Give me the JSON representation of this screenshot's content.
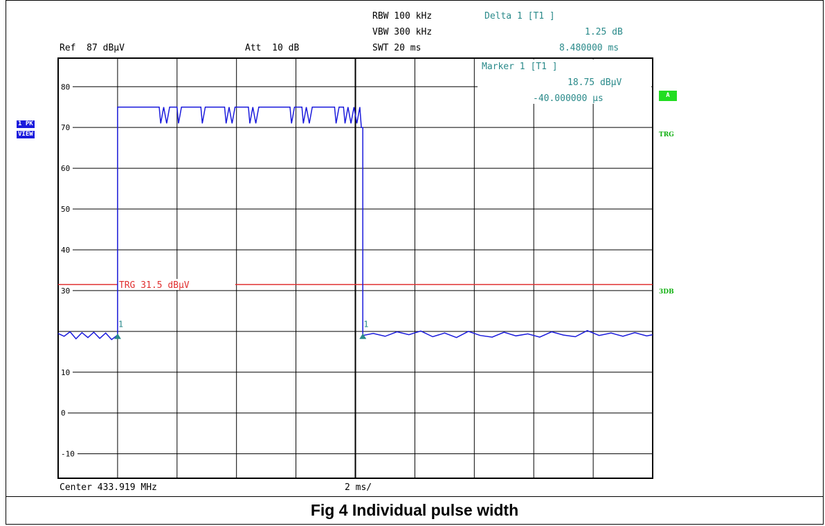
{
  "header": {
    "ref": "Ref  87 dBµV",
    "att": "Att  10 dB",
    "rbw": "RBW 100 kHz",
    "vbw": "VBW 300 kHz",
    "swt": "SWT 20 ms",
    "delta_label": "Delta 1 [T1 ]",
    "delta_value": "1.25 dB",
    "delta_time": "8.480000 ms"
  },
  "marker_box": {
    "title": "Marker 1 [T1 ]",
    "level": "18.75 dBµV",
    "time": "-40.000000 µs"
  },
  "badges": {
    "trace_mode": "1 PK",
    "trace_view": "VIEW",
    "a_label": "A",
    "trg_label": "TRG",
    "db3_label": "3DB"
  },
  "footer": {
    "center": "Center 433.919 MHz",
    "span": "2 ms/"
  },
  "caption": "Fig 4 Individual pulse width",
  "chart_data": {
    "type": "line",
    "title": "",
    "xlabel": "",
    "ylabel": "",
    "x_divisions": 10,
    "x_per_division_ms": 2,
    "y_ticks": [
      80,
      70,
      60,
      50,
      40,
      30,
      20,
      10,
      0,
      -10
    ],
    "y_tick_labels": [
      "80",
      "70",
      "60",
      "50",
      "40",
      "30",
      "",
      "10",
      "0",
      "-10"
    ],
    "ylim": [
      -16,
      87
    ],
    "xlim_ms": [
      0,
      20
    ],
    "trigger_line": {
      "value": 31.5,
      "label": "TRG 31.5 dBµV",
      "color": "#e03030"
    },
    "marker_labels": [
      "1",
      "1"
    ],
    "series": [
      {
        "color": "#1a1adc",
        "points": [
          [
            0.0,
            19.5
          ],
          [
            0.2,
            18.8
          ],
          [
            0.4,
            19.9
          ],
          [
            0.6,
            18.2
          ],
          [
            0.8,
            19.7
          ],
          [
            1.0,
            18.5
          ],
          [
            1.2,
            19.8
          ],
          [
            1.4,
            18.3
          ],
          [
            1.6,
            19.6
          ],
          [
            1.8,
            18.0
          ],
          [
            1.98,
            19.0
          ],
          [
            2.0,
            19.0
          ],
          [
            2.0,
            75.0
          ],
          [
            3.4,
            75.0
          ],
          [
            3.45,
            71.0
          ],
          [
            3.55,
            75.0
          ],
          [
            3.65,
            71.0
          ],
          [
            3.75,
            75.0
          ],
          [
            4.0,
            75.0
          ],
          [
            4.05,
            71.0
          ],
          [
            4.15,
            75.0
          ],
          [
            4.8,
            75.0
          ],
          [
            4.85,
            71.0
          ],
          [
            4.95,
            75.0
          ],
          [
            5.6,
            75.0
          ],
          [
            5.65,
            71.0
          ],
          [
            5.75,
            75.0
          ],
          [
            5.85,
            71.0
          ],
          [
            5.95,
            75.0
          ],
          [
            6.4,
            75.0
          ],
          [
            6.45,
            71.0
          ],
          [
            6.55,
            75.0
          ],
          [
            6.65,
            71.0
          ],
          [
            6.75,
            75.0
          ],
          [
            7.8,
            75.0
          ],
          [
            7.85,
            71.0
          ],
          [
            7.95,
            75.0
          ],
          [
            8.2,
            75.0
          ],
          [
            8.25,
            71.0
          ],
          [
            8.35,
            75.0
          ],
          [
            8.45,
            71.0
          ],
          [
            8.55,
            75.0
          ],
          [
            9.3,
            75.0
          ],
          [
            9.35,
            71.0
          ],
          [
            9.45,
            75.0
          ],
          [
            9.6,
            75.0
          ],
          [
            9.65,
            71.0
          ],
          [
            9.75,
            75.0
          ],
          [
            9.85,
            71.0
          ],
          [
            9.95,
            75.0
          ],
          [
            10.05,
            71.0
          ],
          [
            10.15,
            75.0
          ],
          [
            10.2,
            70.0
          ],
          [
            10.25,
            70.0
          ],
          [
            10.25,
            19.0
          ],
          [
            10.6,
            19.5
          ],
          [
            11.0,
            18.8
          ],
          [
            11.4,
            19.9
          ],
          [
            11.8,
            19.2
          ],
          [
            12.2,
            20.1
          ],
          [
            12.6,
            18.7
          ],
          [
            13.0,
            19.6
          ],
          [
            13.4,
            18.5
          ],
          [
            13.8,
            20.0
          ],
          [
            14.2,
            19.0
          ],
          [
            14.6,
            18.6
          ],
          [
            15.0,
            19.8
          ],
          [
            15.4,
            18.9
          ],
          [
            15.8,
            19.4
          ],
          [
            16.2,
            18.6
          ],
          [
            16.6,
            19.9
          ],
          [
            17.0,
            19.1
          ],
          [
            17.4,
            18.7
          ],
          [
            17.8,
            20.2
          ],
          [
            18.2,
            19.0
          ],
          [
            18.6,
            19.6
          ],
          [
            19.0,
            18.8
          ],
          [
            19.4,
            19.7
          ],
          [
            19.8,
            18.9
          ],
          [
            20.0,
            19.2
          ]
        ]
      }
    ]
  }
}
